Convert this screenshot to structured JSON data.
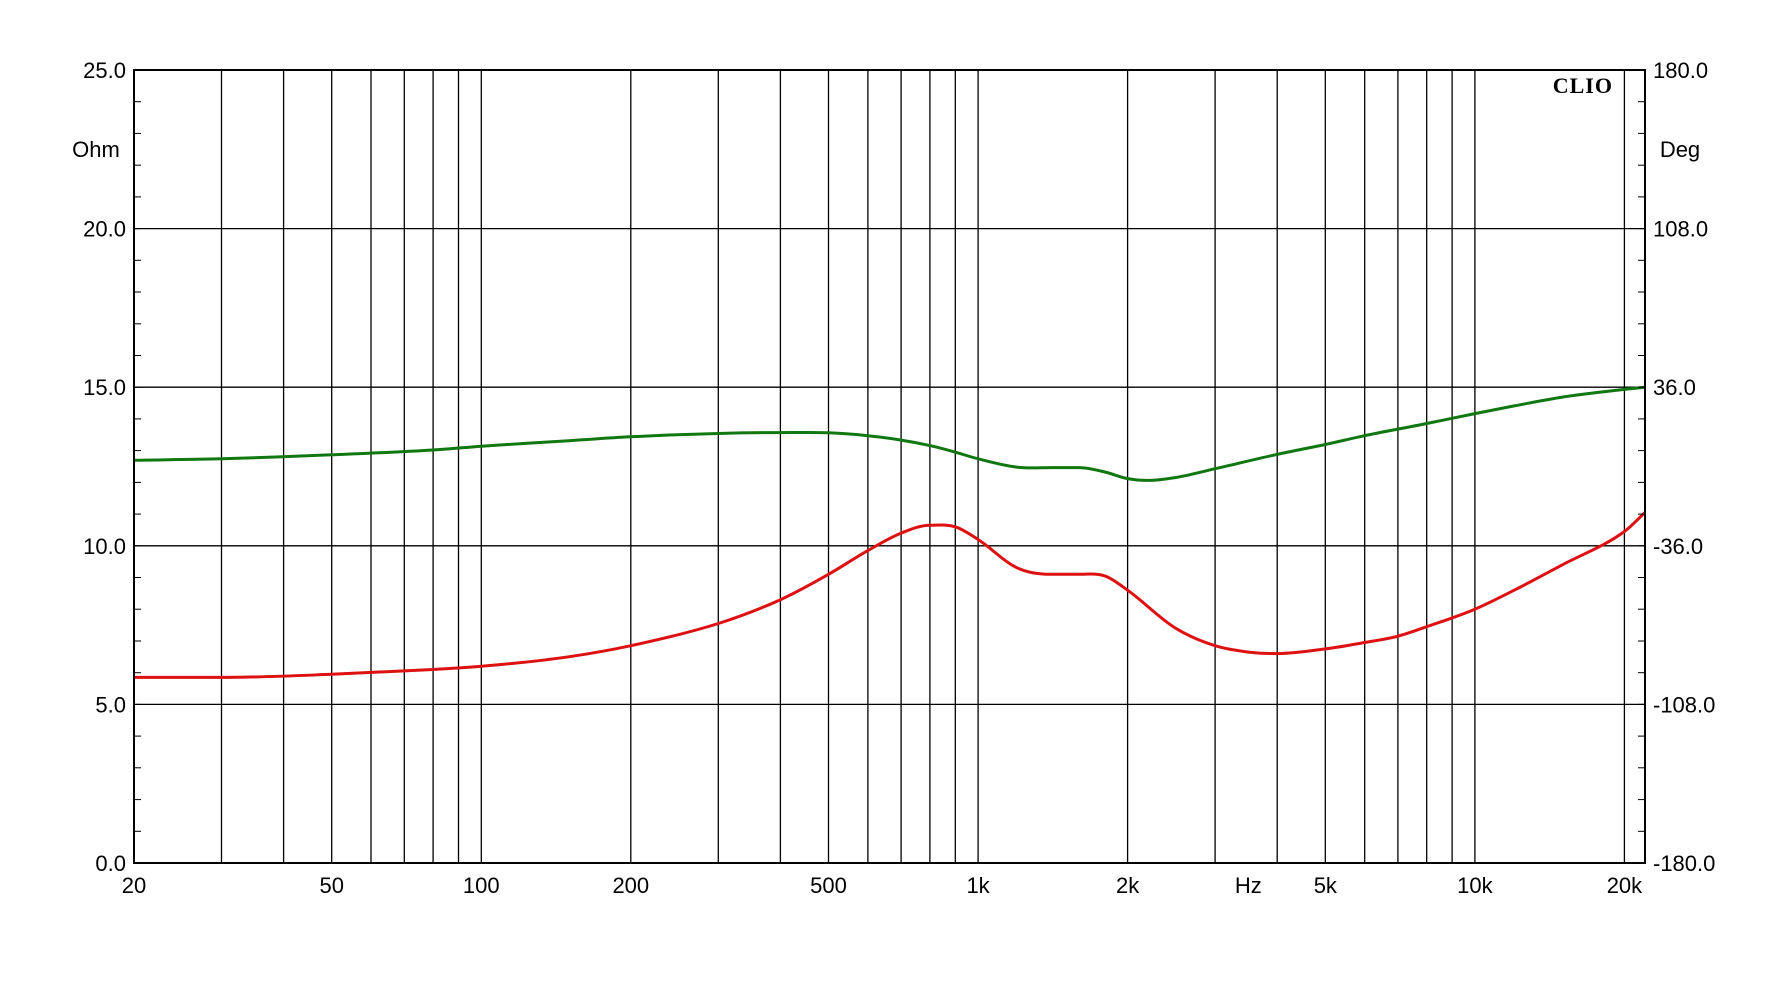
{
  "chart_data": {
    "type": "line",
    "brand": "CLIO",
    "x_unit": "Hz",
    "x_scale": "log",
    "xlim": [
      20,
      22000
    ],
    "x_tick_labels": [
      {
        "value": 20,
        "label": "20"
      },
      {
        "value": 50,
        "label": "50"
      },
      {
        "value": 100,
        "label": "100"
      },
      {
        "value": 200,
        "label": "200"
      },
      {
        "value": 500,
        "label": "500"
      },
      {
        "value": 1000,
        "label": "1k"
      },
      {
        "value": 2000,
        "label": "2k"
      },
      {
        "value": 5000,
        "label": "5k"
      },
      {
        "value": 10000,
        "label": "10k"
      },
      {
        "value": 20000,
        "label": "20k"
      }
    ],
    "x_unit_position_value": 3500,
    "left_axis": {
      "unit": "Ohm",
      "ylim": [
        0,
        25
      ],
      "ticks": [
        {
          "value": 0,
          "label": "0.0"
        },
        {
          "value": 5,
          "label": "5.0"
        },
        {
          "value": 10,
          "label": "10.0"
        },
        {
          "value": 15,
          "label": "15.0"
        },
        {
          "value": 20,
          "label": "20.0"
        },
        {
          "value": 25,
          "label": "25.0"
        }
      ]
    },
    "right_axis": {
      "unit": "Deg",
      "ylim": [
        -180,
        180
      ],
      "ticks": [
        {
          "value": -180,
          "label": "-180.0"
        },
        {
          "value": -108,
          "label": "-108.0"
        },
        {
          "value": -36,
          "label": "-36.0"
        },
        {
          "value": 36,
          "label": "36.0"
        },
        {
          "value": 108,
          "label": "108.0"
        },
        {
          "value": 180,
          "label": "180.0"
        }
      ]
    },
    "grid": true,
    "series": [
      {
        "axis": "left",
        "color": "#dd1111",
        "x": [
          20,
          30,
          50,
          80,
          100,
          150,
          200,
          300,
          400,
          500,
          600,
          700,
          800,
          900,
          1000,
          1200,
          1400,
          1600,
          1800,
          2000,
          2500,
          3000,
          3500,
          4000,
          5000,
          6000,
          7000,
          8000,
          10000,
          12000,
          15000,
          20000,
          22000
        ],
        "y": [
          5.85,
          5.85,
          5.95,
          6.1,
          6.2,
          6.5,
          6.85,
          7.55,
          8.3,
          9.1,
          9.85,
          10.4,
          10.65,
          10.6,
          10.2,
          9.3,
          9.1,
          9.1,
          9.05,
          8.6,
          7.4,
          6.85,
          6.65,
          6.6,
          6.75,
          6.95,
          7.15,
          7.45,
          8.0,
          8.6,
          9.4,
          10.45,
          11.05
        ]
      },
      {
        "axis": "right",
        "color": "#117711",
        "x": [
          20,
          30,
          50,
          80,
          100,
          150,
          200,
          300,
          400,
          500,
          600,
          700,
          800,
          900,
          1000,
          1200,
          1400,
          1600,
          1800,
          2000,
          2200,
          2500,
          3000,
          4000,
          5000,
          6000,
          8000,
          10000,
          12000,
          15000,
          20000,
          22000
        ],
        "y": [
          2.8,
          3.5,
          5.3,
          7.5,
          9.2,
          11.7,
          13.5,
          15.0,
          15.4,
          15.3,
          14.0,
          12.0,
          9.5,
          6.5,
          3.5,
          -0.3,
          -0.5,
          -0.5,
          -2.5,
          -5.5,
          -6.3,
          -5.0,
          -1.0,
          5.5,
          10.0,
          14.0,
          19.5,
          24.0,
          27.5,
          31.5,
          35.0,
          36.0
        ]
      }
    ]
  }
}
